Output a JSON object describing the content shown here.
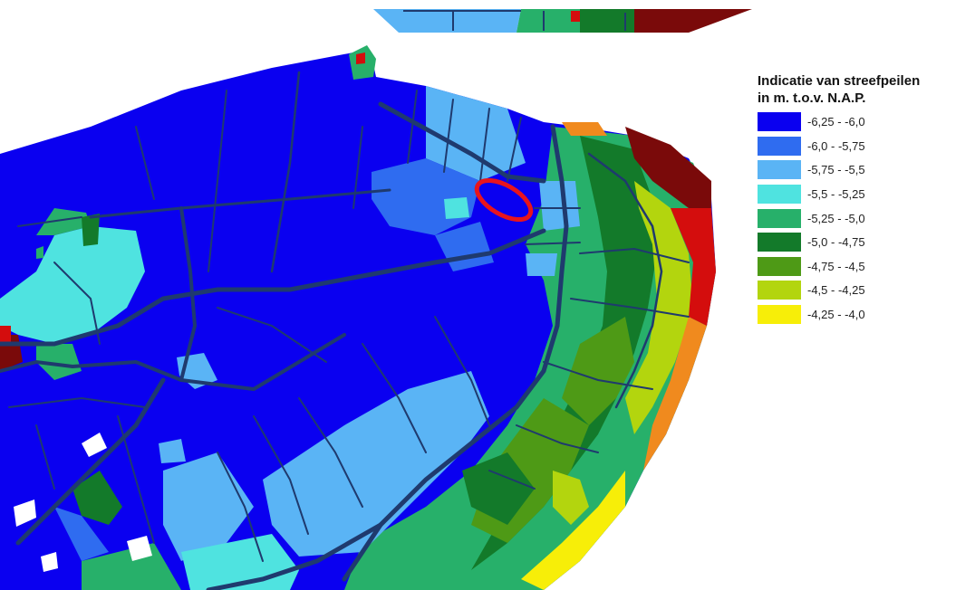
{
  "legend": {
    "title_line1": "Indicatie van streefpeilen",
    "title_line2": "in m. t.o.v. N.A.P.",
    "items": [
      {
        "label": "-6,25 - -6,0",
        "color": "#0a00f0"
      },
      {
        "label": "-6,0 - -5,75",
        "color": "#2f6cf0"
      },
      {
        "label": "-5,75 - -5,5",
        "color": "#5ab4f5"
      },
      {
        "label": "-5,5 - -5,25",
        "color": "#4fe3e0"
      },
      {
        "label": "-5,25 - -5,0",
        "color": "#27b06a"
      },
      {
        "label": "-5,0 - -4,75",
        "color": "#137a2a"
      },
      {
        "label": "-4,75 - -4,5",
        "color": "#4e9a16"
      },
      {
        "label": "-4,5 - -4,25",
        "color": "#b3d50e"
      },
      {
        "label": "-4,25 - -4,0",
        "color": "#f7ee08"
      }
    ]
  },
  "colors": {
    "background": "#ffffff",
    "waterway": "#1f3a6e",
    "highlight": "#e8141c",
    "red_zone": "#d40d0d",
    "dark_red_zone": "#7a0a0a",
    "orange_zone": "#f08a1e",
    "void": "#ffffff"
  },
  "map": {
    "highlight_marker": "red-ellipse"
  }
}
